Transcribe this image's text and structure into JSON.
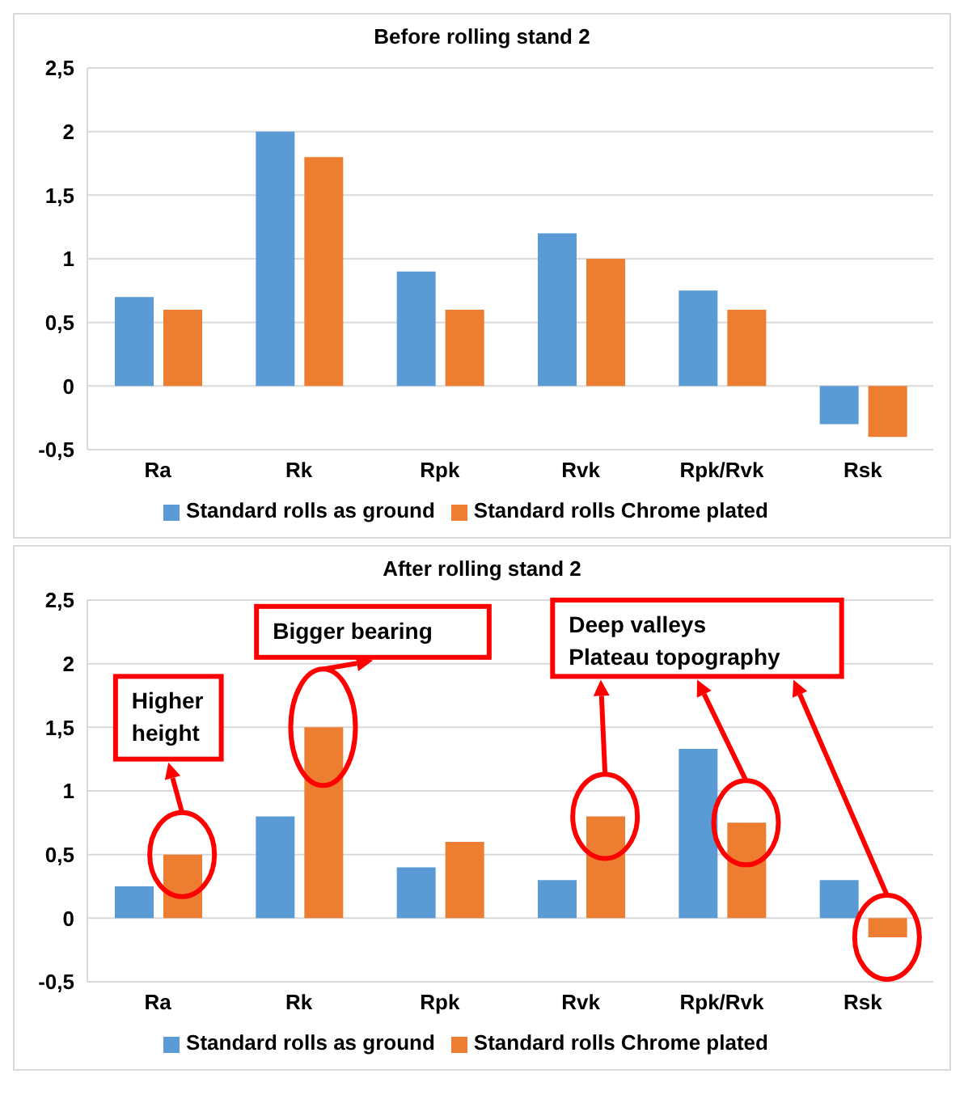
{
  "chart_data": [
    {
      "type": "bar",
      "title": "Before rolling stand 2",
      "categories": [
        "Ra",
        "Rk",
        "Rpk",
        "Rvk",
        "Rpk/Rvk",
        "Rsk"
      ],
      "series": [
        {
          "name": "Standard rolls as ground",
          "color": "#5b9bd5",
          "values": [
            0.7,
            2,
            0.9,
            1.2,
            0.75,
            -0.3
          ]
        },
        {
          "name": "Standard rolls Chrome plated",
          "color": "#ed7d31",
          "values": [
            0.6,
            1.8,
            0.6,
            1.0,
            0.6,
            -0.4
          ]
        }
      ],
      "ylim": [
        -0.5,
        2.5
      ],
      "yticks": [
        {
          "value": -0.5,
          "label": "-0,5"
        },
        0,
        {
          "value": 0.5,
          "label": "0,5"
        },
        1,
        {
          "value": 1.5,
          "label": "1,5"
        },
        2,
        {
          "value": 2.5,
          "label": "2,5"
        }
      ],
      "grid": "y",
      "legend": "bottom"
    },
    {
      "type": "bar",
      "title": "After rolling stand 2",
      "categories": [
        "Ra",
        "Rk",
        "Rpk",
        "Rvk",
        "Rpk/Rvk",
        "Rsk"
      ],
      "series": [
        {
          "name": "Standard rolls as ground",
          "color": "#5b9bd5",
          "values": [
            0.25,
            0.8,
            0.4,
            0.3,
            1.33,
            0.3
          ]
        },
        {
          "name": "Standard rolls Chrome plated",
          "color": "#ed7d31",
          "values": [
            0.5,
            1.5,
            0.6,
            0.8,
            0.75,
            -0.15
          ]
        }
      ],
      "ylim": [
        -0.5,
        2.5
      ],
      "yticks": [
        {
          "value": -0.5,
          "label": "-0,5"
        },
        0,
        {
          "value": 0.5,
          "label": "0,5"
        },
        1,
        {
          "value": 1.5,
          "label": "1,5"
        },
        2,
        {
          "value": 2.5,
          "label": "2,5"
        }
      ],
      "grid": "y",
      "legend": "bottom",
      "annotations": [
        "Higher\nheight",
        "Bigger bearing",
        "Deep valleys\nPlateau topography"
      ]
    }
  ]
}
